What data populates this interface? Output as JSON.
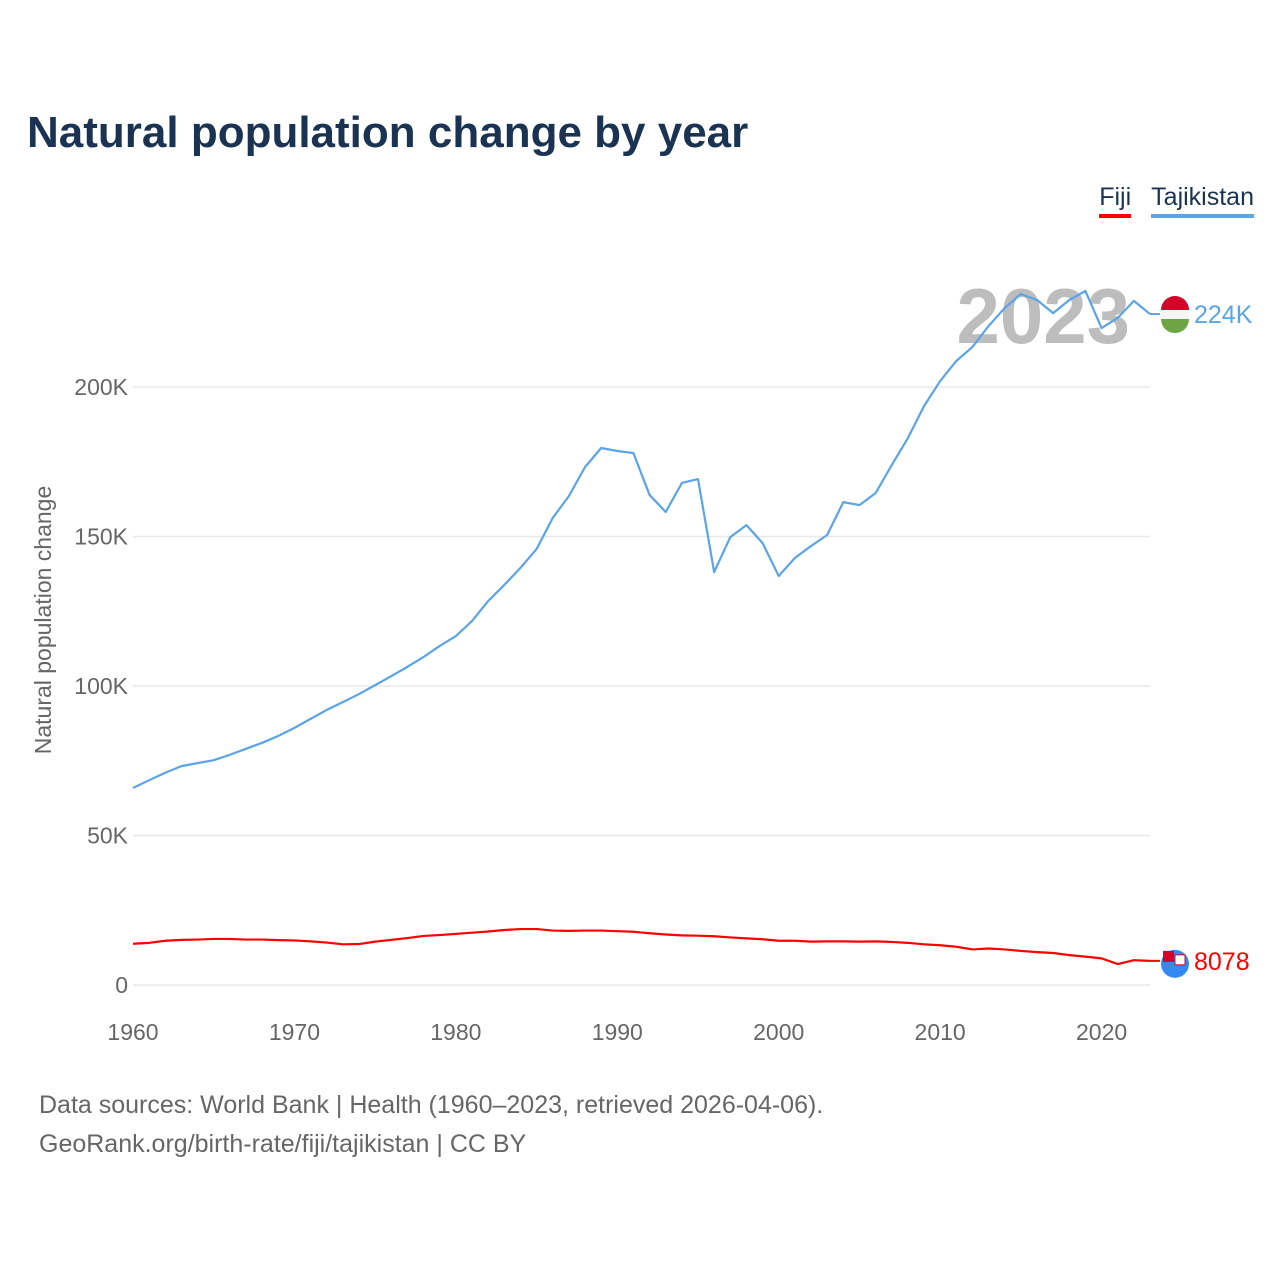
{
  "chart_data": {
    "type": "line",
    "title": "Natural population change by year",
    "xlabel": "",
    "ylabel": "Natural population change",
    "xlim": [
      1960,
      2023
    ],
    "ylim": [
      0,
      240000
    ],
    "yticks": [
      0,
      50000,
      100000,
      150000,
      200000
    ],
    "ytick_labels": [
      "0",
      "50K",
      "100K",
      "150K",
      "200K"
    ],
    "xticks": [
      1960,
      1970,
      1980,
      1990,
      2000,
      2010,
      2020
    ],
    "xtick_labels": [
      "1960",
      "1970",
      "1980",
      "1990",
      "2000",
      "2010",
      "2020"
    ],
    "grid": true,
    "legend_position": "top-right",
    "year_overlay": "2023",
    "x": [
      1960,
      1961,
      1962,
      1963,
      1964,
      1965,
      1966,
      1967,
      1968,
      1969,
      1970,
      1971,
      1972,
      1973,
      1974,
      1975,
      1976,
      1977,
      1978,
      1979,
      1980,
      1981,
      1982,
      1983,
      1984,
      1985,
      1986,
      1987,
      1988,
      1989,
      1990,
      1991,
      1992,
      1993,
      1994,
      1995,
      1996,
      1997,
      1998,
      1999,
      2000,
      2001,
      2002,
      2003,
      2004,
      2005,
      2006,
      2007,
      2008,
      2009,
      2010,
      2011,
      2012,
      2013,
      2014,
      2015,
      2016,
      2017,
      2018,
      2019,
      2020,
      2021,
      2022,
      2023
    ],
    "series": [
      {
        "name": "Fiji",
        "color": "#ff0000",
        "end_label": "8078",
        "values": [
          13800,
          14100,
          14800,
          15100,
          15200,
          15400,
          15400,
          15200,
          15200,
          15000,
          14900,
          14600,
          14200,
          13600,
          13700,
          14500,
          15100,
          15700,
          16400,
          16700,
          17100,
          17500,
          17900,
          18400,
          18700,
          18700,
          18200,
          18100,
          18200,
          18200,
          18000,
          17800,
          17300,
          16900,
          16600,
          16500,
          16300,
          15900,
          15600,
          15300,
          14800,
          14800,
          14500,
          14600,
          14600,
          14500,
          14600,
          14400,
          14100,
          13600,
          13300,
          12800,
          11900,
          12200,
          11900,
          11400,
          11000,
          10700,
          10000,
          9500,
          8900,
          7000,
          8300,
          8078
        ]
      },
      {
        "name": "Tajikistan",
        "color": "#5ba4e8",
        "end_label": "224K",
        "values": [
          65900,
          68500,
          71000,
          73200,
          74200,
          75200,
          77000,
          79000,
          81000,
          83300,
          86000,
          89000,
          92000,
          94600,
          97300,
          100300,
          103300,
          106400,
          109700,
          113400,
          116700,
          121700,
          128400,
          133800,
          139500,
          145800,
          156200,
          163500,
          173200,
          179600,
          178600,
          177900,
          163900,
          158200,
          167900,
          169200,
          138100,
          149800,
          153800,
          147800,
          136800,
          142800,
          146800,
          150500,
          161500,
          160500,
          164500,
          173900,
          182900,
          193600,
          202000,
          208700,
          213400,
          220400,
          226400,
          231100,
          229100,
          224700,
          229100,
          232100,
          219700,
          223100,
          228800,
          224400
        ]
      }
    ]
  },
  "footer": {
    "line1": "Data sources: World Bank | Health (1960–2023, retrieved 2026-04-06).",
    "line2": "GeoRank.org/birth-rate/fiji/tajikistan | CC BY"
  }
}
